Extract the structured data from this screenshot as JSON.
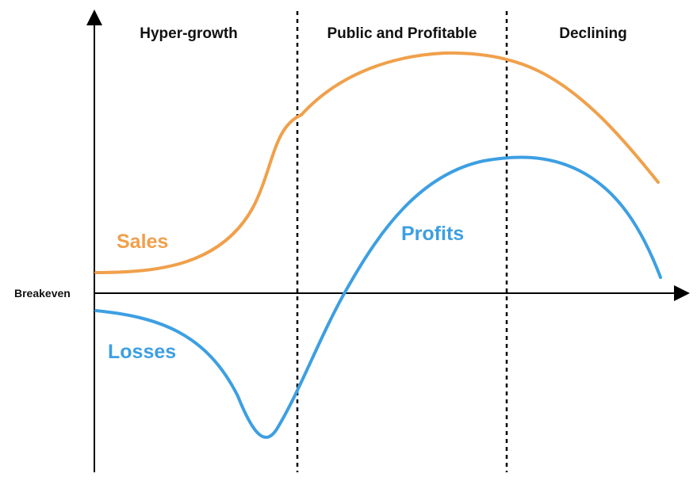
{
  "phases": [
    {
      "label": "Hyper-growth"
    },
    {
      "label": "Public and Profitable"
    },
    {
      "label": "Declining"
    }
  ],
  "axis": {
    "baseline_label": "Breakeven"
  },
  "curves": {
    "sales": {
      "label": "Sales",
      "color": "#F0A04B"
    },
    "profits": {
      "label": "Profits",
      "color": "#3D9FE2"
    },
    "losses": {
      "label": "Losses",
      "color": "#3D9FE2"
    }
  },
  "colors": {
    "axis": "#000000",
    "divider": "#000000",
    "text": "#111111"
  }
}
